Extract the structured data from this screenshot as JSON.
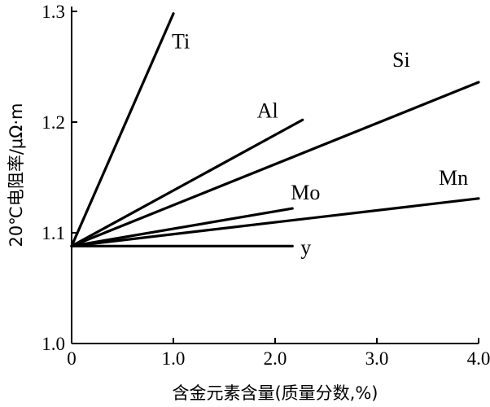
{
  "chart_data": {
    "type": "line",
    "title": "",
    "xlabel": "含金元素含量(质量分数,%)",
    "ylabel": "20℃电阻率/μΩ·m",
    "xlim": [
      0,
      4.0
    ],
    "ylim": [
      1.0,
      1.3
    ],
    "x_ticks": [
      0,
      1.0,
      2.0,
      3.0,
      4.0
    ],
    "x_tick_labels": [
      "0",
      "1.0",
      "2.0",
      "3.0",
      "4.0"
    ],
    "y_ticks": [
      1.0,
      1.1,
      1.2,
      1.3
    ],
    "y_tick_labels": [
      "1.0",
      "1.1",
      "1.2",
      "1.3"
    ],
    "grid": false,
    "legend": "none",
    "series": [
      {
        "name": "Ti",
        "x": [
          0,
          1.0
        ],
        "y": [
          1.088,
          1.298
        ]
      },
      {
        "name": "Al",
        "x": [
          0,
          2.27
        ],
        "y": [
          1.088,
          1.202
        ]
      },
      {
        "name": "Si",
        "x": [
          0,
          4.0
        ],
        "y": [
          1.088,
          1.236
        ]
      },
      {
        "name": "Mo",
        "x": [
          0,
          2.17
        ],
        "y": [
          1.088,
          1.122
        ]
      },
      {
        "name": "Mn",
        "x": [
          0,
          4.0
        ],
        "y": [
          1.088,
          1.131
        ]
      },
      {
        "name": "y",
        "x": [
          0,
          2.17
        ],
        "y": [
          1.088,
          1.088
        ]
      }
    ]
  }
}
